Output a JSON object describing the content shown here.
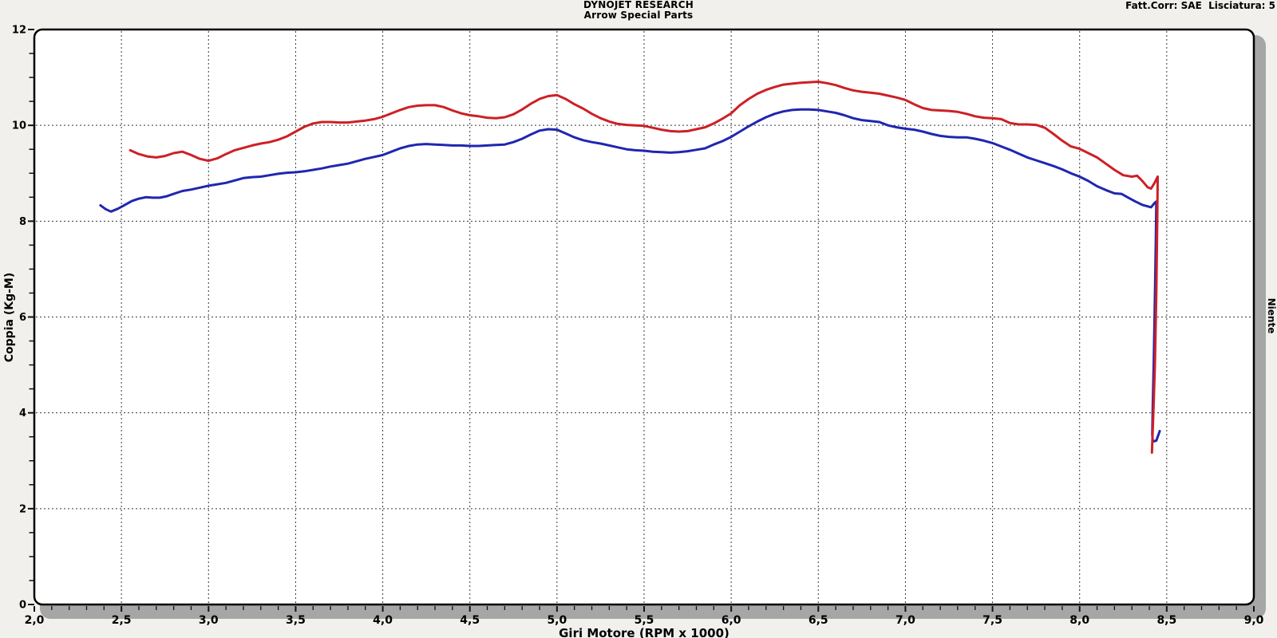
{
  "header": {
    "title": "DYNOJET RESEARCH",
    "subtitle": "Arrow Special Parts",
    "correction_info": "Fatt.Corr: SAE  Lisciatura: 5"
  },
  "chart_data": {
    "type": "line",
    "title": "DYNOJET RESEARCH",
    "subtitle": "Arrow Special Parts",
    "xlabel": "Giri Motore (RPM x 1000)",
    "ylabel_left": "Coppia (Kg-M)",
    "ylabel_right": "Niente",
    "xlim": [
      2.0,
      9.0
    ],
    "ylim": [
      0,
      12
    ],
    "x_tick_values": [
      2.0,
      2.5,
      3.0,
      3.5,
      4.0,
      4.5,
      5.0,
      5.5,
      6.0,
      6.5,
      7.0,
      7.5,
      8.0,
      8.5,
      9.0
    ],
    "x_tick_labels": [
      "2,0",
      "2,5",
      "3,0",
      "3,5",
      "4,0",
      "4,5",
      "5,0",
      "5,5",
      "6,0",
      "6,5",
      "7,0",
      "7,5",
      "8,0",
      "8,5",
      "9,0"
    ],
    "y_tick_values": [
      0,
      2,
      4,
      6,
      8,
      10,
      12
    ],
    "y_tick_labels": [
      "0",
      "2",
      "4",
      "6",
      "8",
      "10",
      "12"
    ],
    "x_grid_values": [
      2.5,
      3.0,
      3.5,
      4.0,
      4.5,
      5.0,
      5.5,
      6.0,
      6.5,
      7.0,
      7.5,
      8.0,
      8.5
    ],
    "y_grid_values": [
      2,
      4,
      6,
      8,
      10
    ],
    "x_minor_tick_step": 0.1,
    "y_minor_tick_step": 0.5,
    "grid_style": "dotted",
    "legend": "none",
    "colors": {
      "page_bg": "#f1f0ec",
      "plot_bg": "#ffffff",
      "border": "#000000",
      "grid": "#383838",
      "shadow": "#a6a6a6",
      "tick": "#111111",
      "series_red": "#cc2026",
      "series_blue": "#2026b0"
    },
    "series": [
      {
        "name": "torque-run-blue",
        "color": "#2026b0",
        "points": [
          [
            2.38,
            8.33
          ],
          [
            2.41,
            8.25
          ],
          [
            2.44,
            8.2
          ],
          [
            2.48,
            8.26
          ],
          [
            2.52,
            8.34
          ],
          [
            2.56,
            8.42
          ],
          [
            2.6,
            8.47
          ],
          [
            2.64,
            8.5
          ],
          [
            2.68,
            8.49
          ],
          [
            2.72,
            8.49
          ],
          [
            2.76,
            8.52
          ],
          [
            2.8,
            8.57
          ],
          [
            2.85,
            8.63
          ],
          [
            2.9,
            8.66
          ],
          [
            2.95,
            8.7
          ],
          [
            3.0,
            8.74
          ],
          [
            3.05,
            8.77
          ],
          [
            3.1,
            8.8
          ],
          [
            3.15,
            8.85
          ],
          [
            3.2,
            8.9
          ],
          [
            3.25,
            8.92
          ],
          [
            3.3,
            8.93
          ],
          [
            3.35,
            8.96
          ],
          [
            3.4,
            8.99
          ],
          [
            3.45,
            9.01
          ],
          [
            3.5,
            9.02
          ],
          [
            3.55,
            9.04
          ],
          [
            3.6,
            9.07
          ],
          [
            3.65,
            9.1
          ],
          [
            3.7,
            9.14
          ],
          [
            3.75,
            9.17
          ],
          [
            3.8,
            9.2
          ],
          [
            3.85,
            9.25
          ],
          [
            3.9,
            9.3
          ],
          [
            3.95,
            9.34
          ],
          [
            4.0,
            9.38
          ],
          [
            4.05,
            9.45
          ],
          [
            4.1,
            9.52
          ],
          [
            4.15,
            9.57
          ],
          [
            4.2,
            9.6
          ],
          [
            4.25,
            9.61
          ],
          [
            4.3,
            9.6
          ],
          [
            4.35,
            9.59
          ],
          [
            4.4,
            9.58
          ],
          [
            4.45,
            9.58
          ],
          [
            4.5,
            9.57
          ],
          [
            4.55,
            9.57
          ],
          [
            4.6,
            9.58
          ],
          [
            4.65,
            9.59
          ],
          [
            4.7,
            9.6
          ],
          [
            4.75,
            9.65
          ],
          [
            4.8,
            9.72
          ],
          [
            4.85,
            9.81
          ],
          [
            4.9,
            9.89
          ],
          [
            4.95,
            9.92
          ],
          [
            5.0,
            9.91
          ],
          [
            5.05,
            9.83
          ],
          [
            5.1,
            9.75
          ],
          [
            5.15,
            9.69
          ],
          [
            5.2,
            9.65
          ],
          [
            5.25,
            9.62
          ],
          [
            5.3,
            9.58
          ],
          [
            5.35,
            9.54
          ],
          [
            5.4,
            9.5
          ],
          [
            5.45,
            9.48
          ],
          [
            5.5,
            9.47
          ],
          [
            5.55,
            9.45
          ],
          [
            5.6,
            9.44
          ],
          [
            5.65,
            9.43
          ],
          [
            5.7,
            9.44
          ],
          [
            5.75,
            9.46
          ],
          [
            5.8,
            9.49
          ],
          [
            5.85,
            9.52
          ],
          [
            5.9,
            9.6
          ],
          [
            5.95,
            9.67
          ],
          [
            6.0,
            9.76
          ],
          [
            6.05,
            9.87
          ],
          [
            6.1,
            9.98
          ],
          [
            6.15,
            10.08
          ],
          [
            6.2,
            10.17
          ],
          [
            6.25,
            10.24
          ],
          [
            6.3,
            10.29
          ],
          [
            6.35,
            10.32
          ],
          [
            6.4,
            10.33
          ],
          [
            6.45,
            10.33
          ],
          [
            6.5,
            10.32
          ],
          [
            6.55,
            10.29
          ],
          [
            6.6,
            10.26
          ],
          [
            6.65,
            10.21
          ],
          [
            6.7,
            10.15
          ],
          [
            6.75,
            10.11
          ],
          [
            6.8,
            10.09
          ],
          [
            6.85,
            10.07
          ],
          [
            6.9,
            10.0
          ],
          [
            6.95,
            9.96
          ],
          [
            7.0,
            9.93
          ],
          [
            7.05,
            9.91
          ],
          [
            7.1,
            9.87
          ],
          [
            7.15,
            9.82
          ],
          [
            7.2,
            9.78
          ],
          [
            7.25,
            9.76
          ],
          [
            7.3,
            9.75
          ],
          [
            7.35,
            9.75
          ],
          [
            7.4,
            9.72
          ],
          [
            7.45,
            9.68
          ],
          [
            7.5,
            9.63
          ],
          [
            7.55,
            9.56
          ],
          [
            7.6,
            9.49
          ],
          [
            7.65,
            9.41
          ],
          [
            7.7,
            9.33
          ],
          [
            7.75,
            9.27
          ],
          [
            7.8,
            9.21
          ],
          [
            7.85,
            9.15
          ],
          [
            7.9,
            9.08
          ],
          [
            7.95,
            9.0
          ],
          [
            8.0,
            8.93
          ],
          [
            8.05,
            8.84
          ],
          [
            8.1,
            8.73
          ],
          [
            8.15,
            8.65
          ],
          [
            8.2,
            8.58
          ],
          [
            8.24,
            8.57
          ],
          [
            8.28,
            8.49
          ],
          [
            8.32,
            8.41
          ],
          [
            8.36,
            8.34
          ],
          [
            8.39,
            8.31
          ],
          [
            8.41,
            8.29
          ],
          [
            8.43,
            8.38
          ],
          [
            8.44,
            8.41
          ],
          [
            8.437,
            7.5
          ],
          [
            8.43,
            6.0
          ],
          [
            8.425,
            5.0
          ],
          [
            8.42,
            4.2
          ],
          [
            8.417,
            3.55
          ],
          [
            8.42,
            3.4
          ],
          [
            8.44,
            3.42
          ],
          [
            8.46,
            3.62
          ]
        ]
      },
      {
        "name": "torque-run-red",
        "color": "#cc2026",
        "points": [
          [
            2.55,
            9.48
          ],
          [
            2.6,
            9.4
          ],
          [
            2.65,
            9.35
          ],
          [
            2.7,
            9.33
          ],
          [
            2.75,
            9.36
          ],
          [
            2.8,
            9.42
          ],
          [
            2.85,
            9.45
          ],
          [
            2.9,
            9.38
          ],
          [
            2.95,
            9.3
          ],
          [
            3.0,
            9.26
          ],
          [
            3.05,
            9.31
          ],
          [
            3.1,
            9.4
          ],
          [
            3.15,
            9.48
          ],
          [
            3.2,
            9.53
          ],
          [
            3.25,
            9.58
          ],
          [
            3.3,
            9.62
          ],
          [
            3.35,
            9.65
          ],
          [
            3.4,
            9.7
          ],
          [
            3.45,
            9.77
          ],
          [
            3.5,
            9.87
          ],
          [
            3.55,
            9.97
          ],
          [
            3.6,
            10.04
          ],
          [
            3.65,
            10.07
          ],
          [
            3.7,
            10.07
          ],
          [
            3.75,
            10.06
          ],
          [
            3.8,
            10.06
          ],
          [
            3.85,
            10.08
          ],
          [
            3.9,
            10.1
          ],
          [
            3.95,
            10.13
          ],
          [
            4.0,
            10.18
          ],
          [
            4.05,
            10.25
          ],
          [
            4.1,
            10.32
          ],
          [
            4.15,
            10.38
          ],
          [
            4.2,
            10.41
          ],
          [
            4.25,
            10.42
          ],
          [
            4.3,
            10.42
          ],
          [
            4.35,
            10.38
          ],
          [
            4.4,
            10.31
          ],
          [
            4.45,
            10.25
          ],
          [
            4.5,
            10.21
          ],
          [
            4.55,
            10.19
          ],
          [
            4.6,
            10.16
          ],
          [
            4.65,
            10.15
          ],
          [
            4.7,
            10.17
          ],
          [
            4.75,
            10.23
          ],
          [
            4.8,
            10.33
          ],
          [
            4.85,
            10.45
          ],
          [
            4.9,
            10.55
          ],
          [
            4.95,
            10.61
          ],
          [
            5.0,
            10.63
          ],
          [
            5.05,
            10.55
          ],
          [
            5.1,
            10.44
          ],
          [
            5.15,
            10.35
          ],
          [
            5.2,
            10.24
          ],
          [
            5.25,
            10.15
          ],
          [
            5.3,
            10.08
          ],
          [
            5.35,
            10.03
          ],
          [
            5.4,
            10.01
          ],
          [
            5.45,
            10.0
          ],
          [
            5.5,
            9.99
          ],
          [
            5.55,
            9.95
          ],
          [
            5.6,
            9.91
          ],
          [
            5.65,
            9.88
          ],
          [
            5.7,
            9.87
          ],
          [
            5.75,
            9.88
          ],
          [
            5.8,
            9.92
          ],
          [
            5.85,
            9.96
          ],
          [
            5.9,
            10.04
          ],
          [
            5.95,
            10.14
          ],
          [
            6.0,
            10.25
          ],
          [
            6.05,
            10.42
          ],
          [
            6.1,
            10.55
          ],
          [
            6.15,
            10.66
          ],
          [
            6.2,
            10.74
          ],
          [
            6.25,
            10.8
          ],
          [
            6.3,
            10.85
          ],
          [
            6.35,
            10.87
          ],
          [
            6.4,
            10.89
          ],
          [
            6.45,
            10.9
          ],
          [
            6.5,
            10.91
          ],
          [
            6.55,
            10.88
          ],
          [
            6.6,
            10.84
          ],
          [
            6.65,
            10.78
          ],
          [
            6.7,
            10.73
          ],
          [
            6.75,
            10.7
          ],
          [
            6.8,
            10.68
          ],
          [
            6.85,
            10.66
          ],
          [
            6.9,
            10.62
          ],
          [
            6.95,
            10.58
          ],
          [
            7.0,
            10.53
          ],
          [
            7.05,
            10.44
          ],
          [
            7.1,
            10.36
          ],
          [
            7.15,
            10.32
          ],
          [
            7.2,
            10.31
          ],
          [
            7.25,
            10.3
          ],
          [
            7.3,
            10.28
          ],
          [
            7.35,
            10.24
          ],
          [
            7.4,
            10.19
          ],
          [
            7.45,
            10.16
          ],
          [
            7.5,
            10.15
          ],
          [
            7.55,
            10.13
          ],
          [
            7.6,
            10.05
          ],
          [
            7.65,
            10.02
          ],
          [
            7.7,
            10.02
          ],
          [
            7.75,
            10.01
          ],
          [
            7.8,
            9.95
          ],
          [
            7.85,
            9.82
          ],
          [
            7.9,
            9.68
          ],
          [
            7.95,
            9.56
          ],
          [
            8.0,
            9.51
          ],
          [
            8.05,
            9.42
          ],
          [
            8.1,
            9.33
          ],
          [
            8.15,
            9.2
          ],
          [
            8.2,
            9.07
          ],
          [
            8.25,
            8.96
          ],
          [
            8.3,
            8.93
          ],
          [
            8.33,
            8.95
          ],
          [
            8.36,
            8.84
          ],
          [
            8.39,
            8.71
          ],
          [
            8.41,
            8.68
          ],
          [
            8.43,
            8.8
          ],
          [
            8.448,
            8.93
          ],
          [
            8.446,
            8.2
          ],
          [
            8.44,
            6.5
          ],
          [
            8.432,
            5.0
          ],
          [
            8.425,
            4.2
          ],
          [
            8.418,
            3.5
          ],
          [
            8.415,
            3.17
          ]
        ]
      }
    ]
  }
}
